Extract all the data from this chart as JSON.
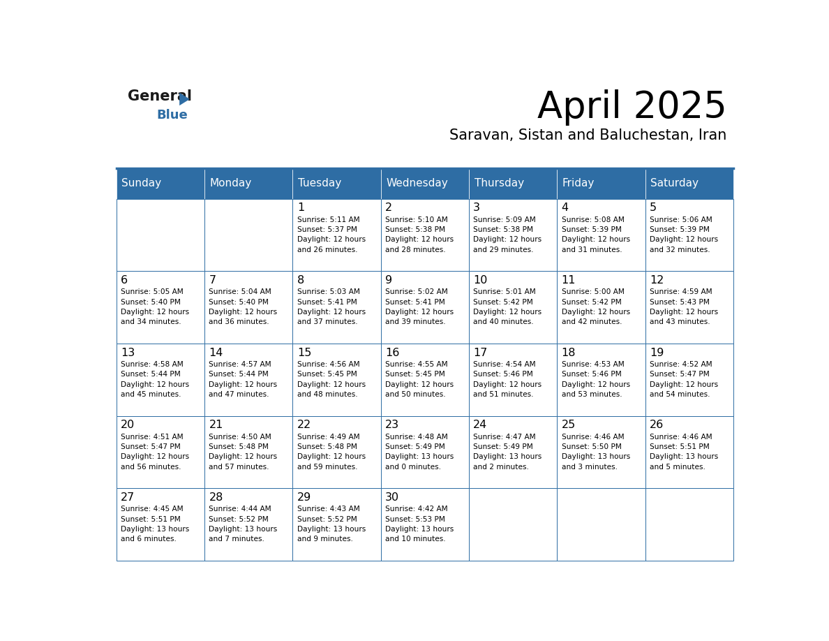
{
  "title": "April 2025",
  "subtitle": "Saravan, Sistan and Baluchestan, Iran",
  "header_bg": "#2E6DA4",
  "header_text": "#FFFFFF",
  "border_color": "#2E6DA4",
  "text_color": "#000000",
  "days_of_week": [
    "Sunday",
    "Monday",
    "Tuesday",
    "Wednesday",
    "Thursday",
    "Friday",
    "Saturday"
  ],
  "weeks": [
    [
      {
        "day": "",
        "info": ""
      },
      {
        "day": "",
        "info": ""
      },
      {
        "day": "1",
        "info": "Sunrise: 5:11 AM\nSunset: 5:37 PM\nDaylight: 12 hours\nand 26 minutes."
      },
      {
        "day": "2",
        "info": "Sunrise: 5:10 AM\nSunset: 5:38 PM\nDaylight: 12 hours\nand 28 minutes."
      },
      {
        "day": "3",
        "info": "Sunrise: 5:09 AM\nSunset: 5:38 PM\nDaylight: 12 hours\nand 29 minutes."
      },
      {
        "day": "4",
        "info": "Sunrise: 5:08 AM\nSunset: 5:39 PM\nDaylight: 12 hours\nand 31 minutes."
      },
      {
        "day": "5",
        "info": "Sunrise: 5:06 AM\nSunset: 5:39 PM\nDaylight: 12 hours\nand 32 minutes."
      }
    ],
    [
      {
        "day": "6",
        "info": "Sunrise: 5:05 AM\nSunset: 5:40 PM\nDaylight: 12 hours\nand 34 minutes."
      },
      {
        "day": "7",
        "info": "Sunrise: 5:04 AM\nSunset: 5:40 PM\nDaylight: 12 hours\nand 36 minutes."
      },
      {
        "day": "8",
        "info": "Sunrise: 5:03 AM\nSunset: 5:41 PM\nDaylight: 12 hours\nand 37 minutes."
      },
      {
        "day": "9",
        "info": "Sunrise: 5:02 AM\nSunset: 5:41 PM\nDaylight: 12 hours\nand 39 minutes."
      },
      {
        "day": "10",
        "info": "Sunrise: 5:01 AM\nSunset: 5:42 PM\nDaylight: 12 hours\nand 40 minutes."
      },
      {
        "day": "11",
        "info": "Sunrise: 5:00 AM\nSunset: 5:42 PM\nDaylight: 12 hours\nand 42 minutes."
      },
      {
        "day": "12",
        "info": "Sunrise: 4:59 AM\nSunset: 5:43 PM\nDaylight: 12 hours\nand 43 minutes."
      }
    ],
    [
      {
        "day": "13",
        "info": "Sunrise: 4:58 AM\nSunset: 5:44 PM\nDaylight: 12 hours\nand 45 minutes."
      },
      {
        "day": "14",
        "info": "Sunrise: 4:57 AM\nSunset: 5:44 PM\nDaylight: 12 hours\nand 47 minutes."
      },
      {
        "day": "15",
        "info": "Sunrise: 4:56 AM\nSunset: 5:45 PM\nDaylight: 12 hours\nand 48 minutes."
      },
      {
        "day": "16",
        "info": "Sunrise: 4:55 AM\nSunset: 5:45 PM\nDaylight: 12 hours\nand 50 minutes."
      },
      {
        "day": "17",
        "info": "Sunrise: 4:54 AM\nSunset: 5:46 PM\nDaylight: 12 hours\nand 51 minutes."
      },
      {
        "day": "18",
        "info": "Sunrise: 4:53 AM\nSunset: 5:46 PM\nDaylight: 12 hours\nand 53 minutes."
      },
      {
        "day": "19",
        "info": "Sunrise: 4:52 AM\nSunset: 5:47 PM\nDaylight: 12 hours\nand 54 minutes."
      }
    ],
    [
      {
        "day": "20",
        "info": "Sunrise: 4:51 AM\nSunset: 5:47 PM\nDaylight: 12 hours\nand 56 minutes."
      },
      {
        "day": "21",
        "info": "Sunrise: 4:50 AM\nSunset: 5:48 PM\nDaylight: 12 hours\nand 57 minutes."
      },
      {
        "day": "22",
        "info": "Sunrise: 4:49 AM\nSunset: 5:48 PM\nDaylight: 12 hours\nand 59 minutes."
      },
      {
        "day": "23",
        "info": "Sunrise: 4:48 AM\nSunset: 5:49 PM\nDaylight: 13 hours\nand 0 minutes."
      },
      {
        "day": "24",
        "info": "Sunrise: 4:47 AM\nSunset: 5:49 PM\nDaylight: 13 hours\nand 2 minutes."
      },
      {
        "day": "25",
        "info": "Sunrise: 4:46 AM\nSunset: 5:50 PM\nDaylight: 13 hours\nand 3 minutes."
      },
      {
        "day": "26",
        "info": "Sunrise: 4:46 AM\nSunset: 5:51 PM\nDaylight: 13 hours\nand 5 minutes."
      }
    ],
    [
      {
        "day": "27",
        "info": "Sunrise: 4:45 AM\nSunset: 5:51 PM\nDaylight: 13 hours\nand 6 minutes."
      },
      {
        "day": "28",
        "info": "Sunrise: 4:44 AM\nSunset: 5:52 PM\nDaylight: 13 hours\nand 7 minutes."
      },
      {
        "day": "29",
        "info": "Sunrise: 4:43 AM\nSunset: 5:52 PM\nDaylight: 13 hours\nand 9 minutes."
      },
      {
        "day": "30",
        "info": "Sunrise: 4:42 AM\nSunset: 5:53 PM\nDaylight: 13 hours\nand 10 minutes."
      },
      {
        "day": "",
        "info": ""
      },
      {
        "day": "",
        "info": ""
      },
      {
        "day": "",
        "info": ""
      }
    ]
  ]
}
